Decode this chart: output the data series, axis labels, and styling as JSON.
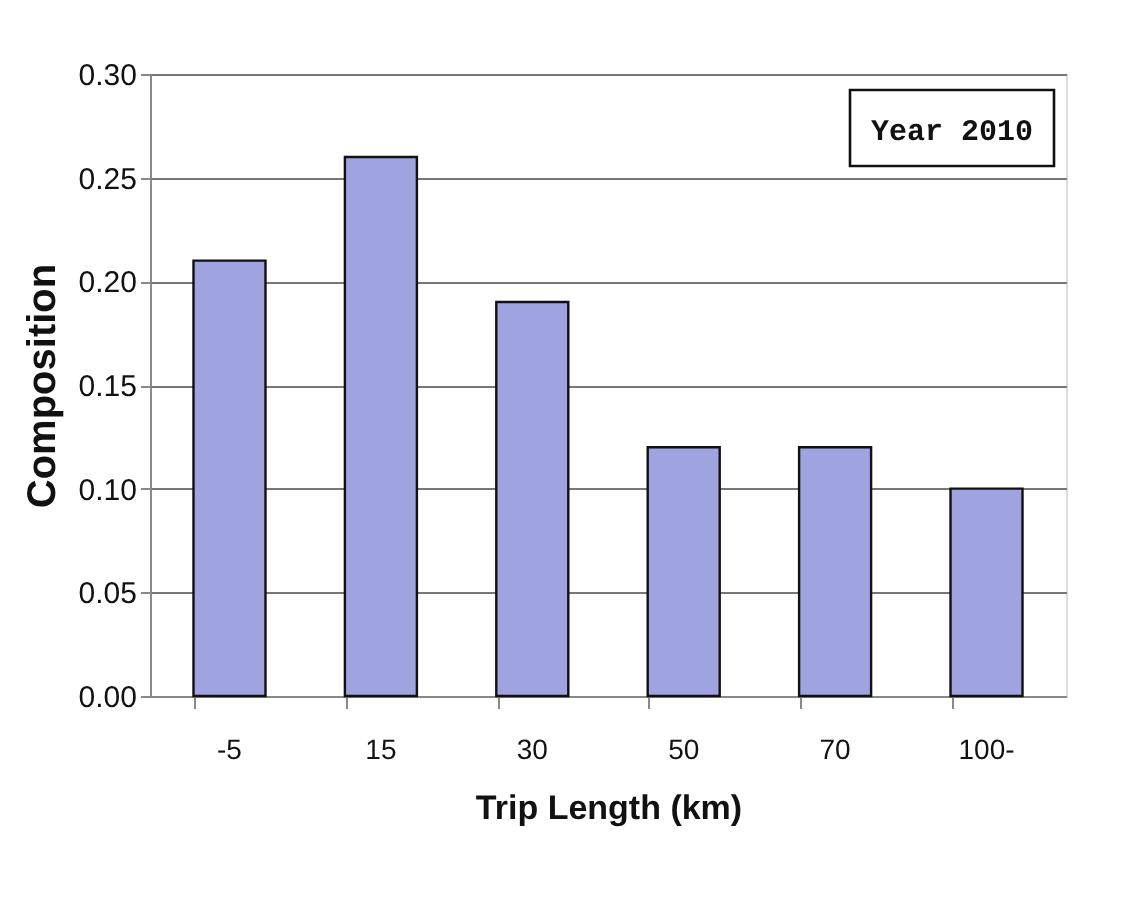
{
  "chart_data": {
    "type": "bar",
    "xlabel": "Trip Length (km)",
    "ylabel": "Composition",
    "categories": [
      "-5",
      "15",
      "30",
      "50",
      "70",
      "100-"
    ],
    "values": [
      0.21,
      0.26,
      0.19,
      0.12,
      0.12,
      0.1
    ],
    "color": "#9fa3e0",
    "ylim": [
      0,
      0.3
    ],
    "yticks": [
      {
        "value": 0,
        "label": "0.00"
      },
      {
        "value": 0.05,
        "label": "0.05"
      },
      {
        "value": 0.1,
        "label": "0.10"
      },
      {
        "value": 0.15,
        "label": "0.15"
      },
      {
        "value": 0.2,
        "label": "0.20"
      },
      {
        "value": 0.25,
        "label": "0.25"
      },
      {
        "value": 0.3,
        "label": "0.30"
      }
    ],
    "grid": "y",
    "annotations": [
      "Year 2010"
    ]
  }
}
